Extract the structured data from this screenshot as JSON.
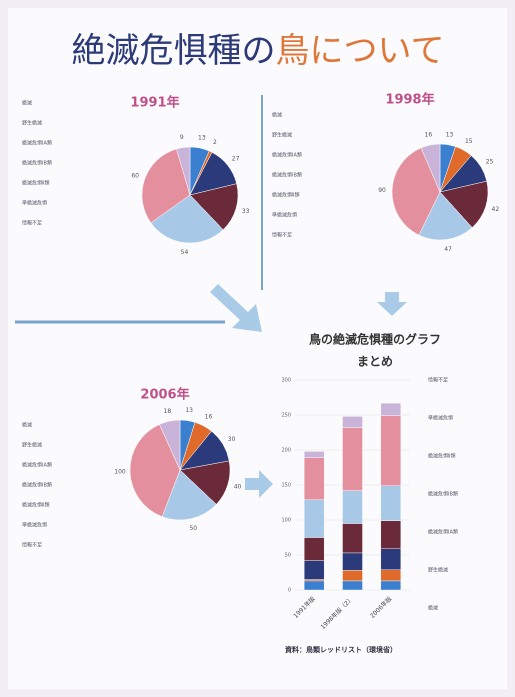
{
  "header": {
    "title_main": "絶滅危惧種の",
    "title_accent": "鳥について"
  },
  "chart_data": [
    {
      "type": "pie",
      "title": "1991年",
      "categories": [
        "絶滅",
        "野生絶滅",
        "絶滅危惧ⅠA類",
        "絶滅危惧ⅠB類",
        "絶滅危惧Ⅱ類",
        "準絶滅危惧",
        "情報不足"
      ],
      "values": [
        13,
        2,
        27,
        33,
        54,
        60,
        9
      ],
      "colors": [
        "#3a7fd0",
        "#e06a2a",
        "#2a3a7a",
        "#6a2a3a",
        "#a8c8e8",
        "#e48f9e",
        "#c9b3d8"
      ]
    },
    {
      "type": "pie",
      "title": "1998年",
      "categories": [
        "絶滅",
        "野生絶滅",
        "絶滅危惧ⅠA類",
        "絶滅危惧ⅠB類",
        "絶滅危惧Ⅱ類",
        "準絶滅危惧",
        "情報不足"
      ],
      "values": [
        13,
        15,
        25,
        42,
        47,
        90,
        16
      ],
      "colors": [
        "#3a7fd0",
        "#e06a2a",
        "#2a3a7a",
        "#6a2a3a",
        "#a8c8e8",
        "#e48f9e",
        "#c9b3d8"
      ]
    },
    {
      "type": "pie",
      "title": "2006年",
      "categories": [
        "絶滅",
        "野生絶滅",
        "絶滅危惧ⅠA類",
        "絶滅危惧ⅠB類",
        "絶滅危惧Ⅱ類",
        "準絶滅危惧",
        "情報不足"
      ],
      "values": [
        13,
        16,
        30,
        40,
        50,
        100,
        18
      ],
      "colors": [
        "#3a7fd0",
        "#e06a2a",
        "#2a3a7a",
        "#6a2a3a",
        "#a8c8e8",
        "#e48f9e",
        "#c9b3d8"
      ]
    },
    {
      "type": "stacked_bar",
      "title": [
        "鳥の絶滅危惧種のグラフ",
        "まとめ"
      ],
      "categories": [
        "1991年版",
        "1998年版（2）",
        "2006年版"
      ],
      "series": [
        {
          "name": "絶滅",
          "color": "#3a7fd0",
          "values": [
            13,
            13,
            13
          ]
        },
        {
          "name": "野生絶滅",
          "color": "#e06a2a",
          "values": [
            2,
            15,
            16
          ]
        },
        {
          "name": "絶滅危惧ⅠA類",
          "color": "#2a3a7a",
          "values": [
            27,
            25,
            30
          ]
        },
        {
          "name": "絶滅危惧ⅠB類",
          "color": "#6a2a3a",
          "values": [
            33,
            42,
            40
          ]
        },
        {
          "name": "絶滅危惧Ⅱ類",
          "color": "#a8c8e8",
          "values": [
            54,
            47,
            50
          ]
        },
        {
          "name": "準絶滅危惧",
          "color": "#e48f9e",
          "values": [
            60,
            90,
            100
          ]
        },
        {
          "name": "情報不足",
          "color": "#c9b3d8",
          "values": [
            9,
            16,
            18
          ]
        }
      ],
      "ylim": [
        0,
        300
      ],
      "yticks": [
        0,
        50,
        100,
        150,
        200,
        250,
        300
      ],
      "grid": true,
      "source": "資料：鳥類レッドリスト（環境省）"
    }
  ]
}
